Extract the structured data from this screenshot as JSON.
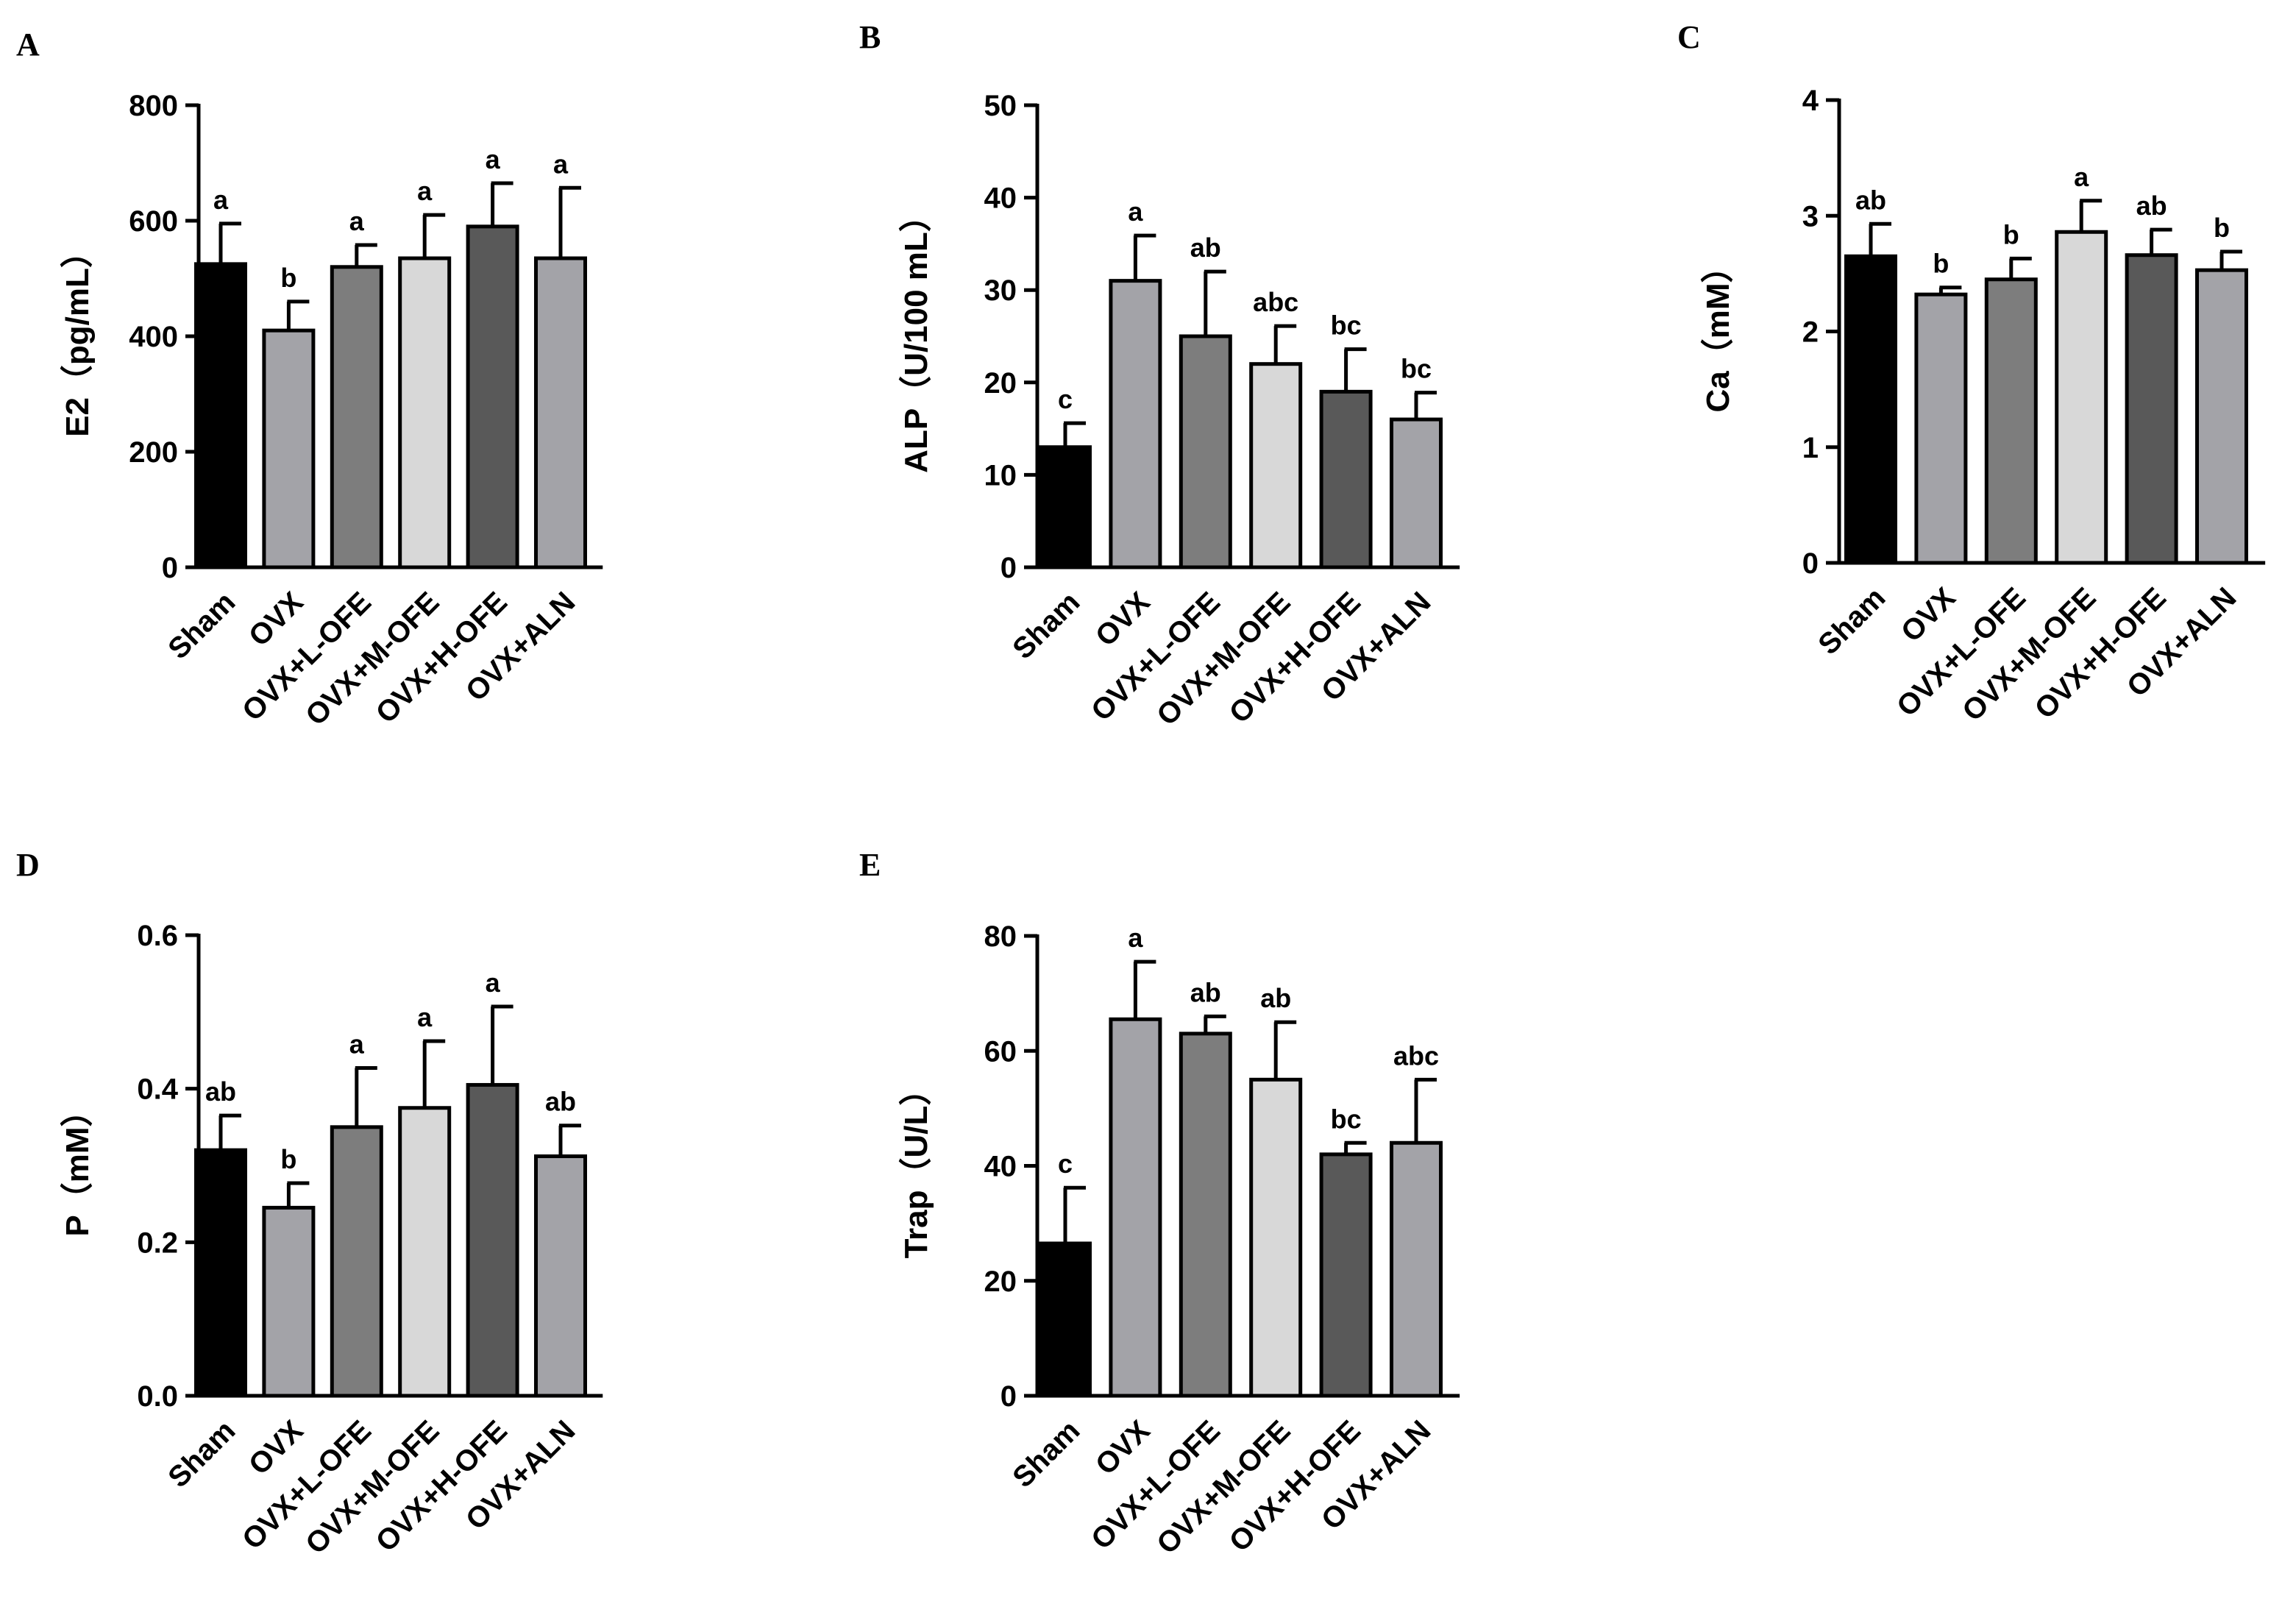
{
  "chart_data": [
    {
      "panel": "A",
      "type": "bar",
      "ylabel": "E2（pg/mL）",
      "ylim": [
        0,
        800
      ],
      "yticks": [
        0,
        200,
        400,
        600,
        800
      ],
      "categories": [
        "Sham",
        "OVX",
        "OVX+L-OFE",
        "OVX+M-OFE",
        "OVX+H-OFE",
        "OVX+ALN"
      ],
      "values": [
        525,
        410,
        520,
        535,
        590,
        535
      ],
      "errors": [
        70,
        50,
        38,
        75,
        75,
        122
      ],
      "significance": [
        "a",
        "b",
        "a",
        "a",
        "a",
        "a"
      ],
      "bar_colors": [
        "#000000",
        "#a3a3a8",
        "#7d7d7d",
        "#d8d8d8",
        "#595959",
        "#a3a3a8"
      ]
    },
    {
      "panel": "B",
      "type": "bar",
      "ylabel": "ALP（U/100 mL）",
      "ylim": [
        0,
        50
      ],
      "yticks": [
        0,
        10,
        20,
        30,
        40,
        50
      ],
      "categories": [
        "Sham",
        "OVX",
        "OVX+L-OFE",
        "OVX+M-OFE",
        "OVX+H-OFE",
        "OVX+ALN"
      ],
      "values": [
        13,
        31,
        25,
        22,
        19,
        16
      ],
      "errors": [
        2.6,
        4.9,
        7,
        4.1,
        4.6,
        2.9
      ],
      "significance": [
        "c",
        "a",
        "ab",
        "abc",
        "bc",
        "bc"
      ],
      "bar_colors": [
        "#000000",
        "#a3a3a8",
        "#7d7d7d",
        "#d8d8d8",
        "#595959",
        "#a3a3a8"
      ]
    },
    {
      "panel": "C",
      "type": "bar",
      "ylabel": "Ca（mM）",
      "ylim": [
        0,
        4
      ],
      "yticks": [
        0,
        1,
        2,
        3,
        4
      ],
      "categories": [
        "Sham",
        "OVX",
        "OVX+L-OFE",
        "OVX+M-OFE",
        "OVX+H-OFE",
        "OVX+ALN"
      ],
      "values": [
        2.65,
        2.32,
        2.45,
        2.86,
        2.66,
        2.53
      ],
      "errors": [
        0.28,
        0.06,
        0.18,
        0.27,
        0.22,
        0.16
      ],
      "significance": [
        "ab",
        "b",
        "b",
        "a",
        "ab",
        "b"
      ],
      "bar_colors": [
        "#000000",
        "#a3a3a8",
        "#7d7d7d",
        "#d8d8d8",
        "#595959",
        "#a3a3a8"
      ]
    },
    {
      "panel": "D",
      "type": "bar",
      "ylabel": "P（mM）",
      "ylim": [
        0,
        0.6
      ],
      "yticks": [
        0.0,
        0.2,
        0.4,
        0.6
      ],
      "tick_labels": [
        "0.0",
        "0.2",
        "0.4",
        "0.6"
      ],
      "categories": [
        "Sham",
        "OVX",
        "OVX+L-OFE",
        "OVX+M-OFE",
        "OVX+H-OFE",
        "OVX+ALN"
      ],
      "values": [
        0.32,
        0.245,
        0.35,
        0.375,
        0.405,
        0.312
      ],
      "errors": [
        0.045,
        0.032,
        0.077,
        0.087,
        0.102,
        0.04
      ],
      "significance": [
        "ab",
        "b",
        "a",
        "a",
        "a",
        "ab"
      ],
      "bar_colors": [
        "#000000",
        "#a3a3a8",
        "#7d7d7d",
        "#d8d8d8",
        "#595959",
        "#a3a3a8"
      ]
    },
    {
      "panel": "E",
      "type": "bar",
      "ylabel": "Trap（U/L）",
      "ylim": [
        0,
        80
      ],
      "yticks": [
        0,
        20,
        40,
        60,
        80
      ],
      "categories": [
        "Sham",
        "OVX",
        "OVX+L-OFE",
        "OVX+M-OFE",
        "OVX+H-OFE",
        "OVX+ALN"
      ],
      "values": [
        26.5,
        65.5,
        63,
        55,
        42,
        44
      ],
      "errors": [
        9.7,
        10,
        3,
        10,
        2,
        11
      ],
      "significance": [
        "c",
        "a",
        "ab",
        "ab",
        "bc",
        "abc"
      ],
      "bar_colors": [
        "#000000",
        "#a3a3a8",
        "#7d7d7d",
        "#d8d8d8",
        "#595959",
        "#a3a3a8"
      ]
    }
  ]
}
